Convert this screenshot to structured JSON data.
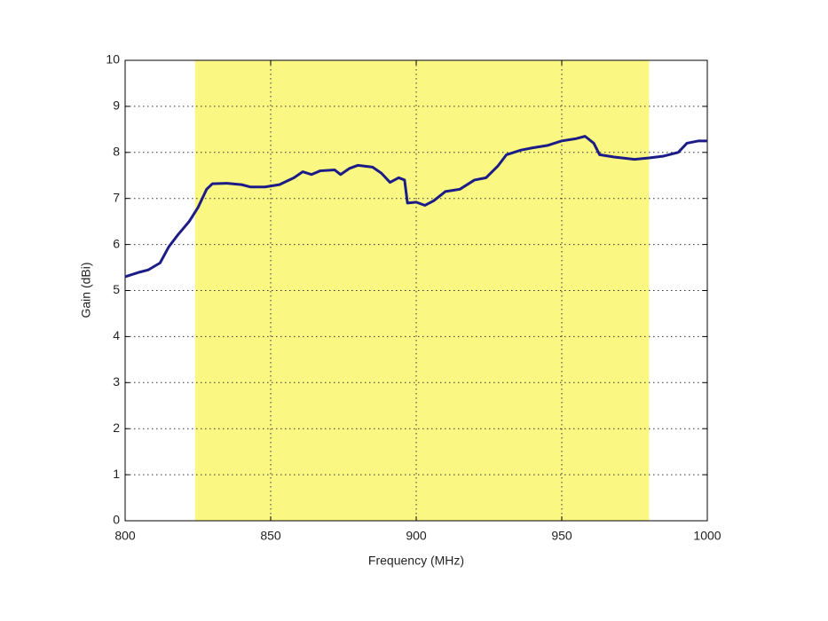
{
  "chart_data": {
    "type": "line",
    "x_label": "Frequency (MHz)",
    "y_label": "Gain (dBi)",
    "x": [
      800,
      805,
      808,
      812,
      815,
      818,
      822,
      825,
      828,
      830,
      835,
      840,
      843,
      848,
      853,
      858,
      861,
      864,
      867,
      872,
      874,
      877,
      880,
      885,
      888,
      891,
      894,
      896,
      897,
      900,
      903,
      906,
      910,
      915,
      920,
      924,
      928,
      931,
      936,
      940,
      945,
      950,
      955,
      958,
      961,
      963,
      968,
      975,
      980,
      985,
      990,
      993,
      997,
      1000
    ],
    "series": [
      {
        "color": "#1c1c86",
        "values": [
          5.3,
          5.4,
          5.45,
          5.6,
          5.95,
          6.2,
          6.5,
          6.8,
          7.2,
          7.32,
          7.33,
          7.3,
          7.25,
          7.25,
          7.3,
          7.45,
          7.58,
          7.52,
          7.6,
          7.62,
          7.52,
          7.65,
          7.72,
          7.68,
          7.55,
          7.35,
          7.45,
          7.4,
          6.9,
          6.92,
          6.85,
          6.95,
          7.15,
          7.2,
          7.4,
          7.45,
          7.7,
          7.95,
          8.05,
          8.1,
          8.15,
          8.25,
          8.3,
          8.35,
          8.2,
          7.95,
          7.9,
          7.85,
          7.88,
          7.92,
          8.0,
          8.2,
          8.25,
          8.25
        ]
      }
    ],
    "shaded_region": {
      "x": [
        824,
        980
      ],
      "color": "#fbf783"
    },
    "xlim": [
      800,
      1000
    ],
    "xticks": [
      800,
      850,
      900,
      950,
      1000
    ],
    "ylim": [
      0,
      10
    ],
    "yticks": [
      0,
      1,
      2,
      3,
      4,
      5,
      6,
      7,
      8,
      9,
      10
    ],
    "grid": true
  }
}
